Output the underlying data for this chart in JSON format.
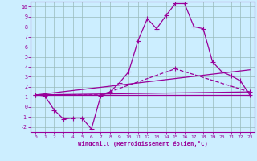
{
  "xlabel": "Windchill (Refroidissement éolien,°C)",
  "background_color": "#cceeff",
  "grid_color": "#99bbbb",
  "line_color": "#990099",
  "xlim": [
    -0.5,
    23.5
  ],
  "ylim": [
    -2.5,
    10.5
  ],
  "xticks": [
    0,
    1,
    2,
    3,
    4,
    5,
    6,
    7,
    8,
    9,
    10,
    11,
    12,
    13,
    14,
    15,
    16,
    17,
    18,
    19,
    20,
    21,
    22,
    23
  ],
  "yticks": [
    -2,
    -1,
    0,
    1,
    2,
    3,
    4,
    5,
    6,
    7,
    8,
    9,
    10
  ],
  "line1_x": [
    0,
    1,
    2,
    3,
    4,
    5,
    6,
    7,
    8,
    9,
    10,
    11,
    12,
    13,
    14,
    15,
    16,
    17,
    18,
    19,
    20,
    21,
    22,
    23
  ],
  "line1_y": [
    1.2,
    1.1,
    -0.3,
    -1.2,
    -1.1,
    -1.1,
    -2.2,
    1.1,
    1.5,
    2.4,
    3.5,
    6.6,
    8.8,
    7.8,
    9.1,
    10.3,
    10.3,
    8.0,
    7.8,
    4.5,
    3.5,
    3.1,
    2.6,
    1.2
  ],
  "line2_x": [
    0,
    7,
    15,
    23
  ],
  "line2_y": [
    1.2,
    1.2,
    3.8,
    1.5
  ],
  "line3_x": [
    0,
    23
  ],
  "line3_y": [
    1.2,
    3.7
  ],
  "line4_x": [
    0,
    23
  ],
  "line4_y": [
    1.2,
    1.5
  ],
  "line5_x": [
    0,
    23
  ],
  "line5_y": [
    1.2,
    1.2
  ],
  "marker": "+",
  "markersize": 4,
  "linewidth": 0.9
}
